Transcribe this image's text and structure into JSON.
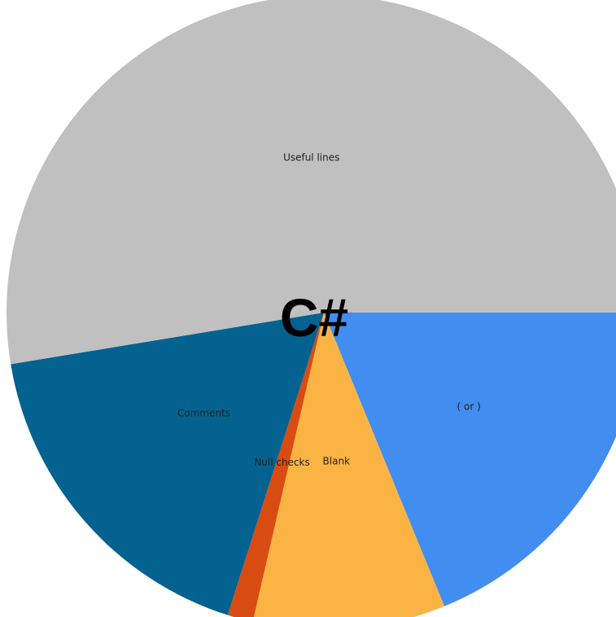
{
  "chart_data": {
    "type": "pie",
    "title": "C#",
    "start_angle_deg": 0,
    "direction": "clockwise",
    "slices": [
      {
        "label": "( or )",
        "value": 18.8,
        "color": "#428DF0"
      },
      {
        "label": "Blank",
        "value": 9.8,
        "color": "#FBB444"
      },
      {
        "label": "Null checks",
        "value": 1.3,
        "color": "#D84C11"
      },
      {
        "label": "Comments",
        "value": 17.5,
        "color": "#046290"
      },
      {
        "label": "Useful lines",
        "value": 52.6,
        "color": "#C0C0C0"
      }
    ]
  }
}
